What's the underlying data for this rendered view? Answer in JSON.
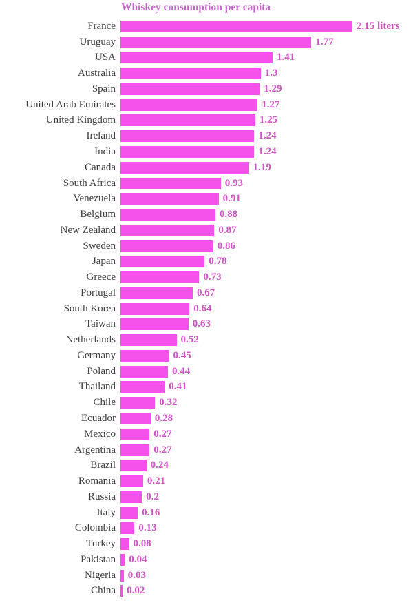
{
  "title": "Whiskey consumption per capita",
  "colors": {
    "background": "#ffffff",
    "bar": "#f551eb",
    "title": "#c564cb",
    "country_label": "#3d3d3d",
    "value_label": "#d153c6"
  },
  "chart_data": {
    "type": "bar",
    "orientation": "horizontal",
    "title": "Whiskey consumption per capita",
    "unit": "liters",
    "xlabel": "",
    "ylabel": "",
    "xlim": [
      0,
      2.15
    ],
    "grid": false,
    "legend": false,
    "categories": [
      "France",
      "Uruguay",
      "USA",
      "Australia",
      "Spain",
      "United Arab Emirates",
      "United Kingdom",
      "Ireland",
      "India",
      "Canada",
      "South Africa",
      "Venezuela",
      "Belgium",
      "New Zealand",
      "Sweden",
      "Japan",
      "Greece",
      "Portugal",
      "South Korea",
      "Taiwan",
      "Netherlands",
      "Germany",
      "Poland",
      "Thailand",
      "Chile",
      "Ecuador",
      "Mexico",
      "Argentina",
      "Brazil",
      "Romania",
      "Russia",
      "Italy",
      "Colombia",
      "Turkey",
      "Pakistan",
      "Nigeria",
      "China"
    ],
    "values": [
      2.15,
      1.77,
      1.41,
      1.3,
      1.29,
      1.27,
      1.25,
      1.24,
      1.24,
      1.19,
      0.93,
      0.91,
      0.88,
      0.87,
      0.86,
      0.78,
      0.73,
      0.67,
      0.64,
      0.63,
      0.52,
      0.45,
      0.44,
      0.41,
      0.32,
      0.28,
      0.27,
      0.27,
      0.24,
      0.21,
      0.2,
      0.16,
      0.13,
      0.08,
      0.04,
      0.03,
      0.02
    ],
    "value_labels": [
      "2.15 liters",
      "1.77",
      "1.41",
      "1.3",
      "1.29",
      "1.27",
      "1.25",
      "1.24",
      "1.24",
      "1.19",
      "0.93",
      "0.91",
      "0.88",
      "0.87",
      "0.86",
      "0.78",
      "0.73",
      "0.67",
      "0.64",
      "0.63",
      "0.52",
      "0.45",
      "0.44",
      "0.41",
      "0.32",
      "0.28",
      "0.27",
      "0.27",
      "0.24",
      "0.21",
      "0.2",
      "0.16",
      "0.13",
      "0.08",
      "0.04",
      "0.03",
      "0.02"
    ]
  }
}
